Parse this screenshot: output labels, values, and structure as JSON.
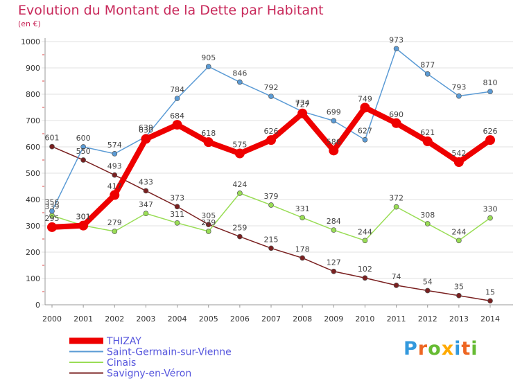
{
  "title": "Evolution du Montant de la Dette par Habitant",
  "subtitle": "(en €)",
  "logo_text": "Proxiti",
  "chart_data": {
    "type": "line",
    "x": [
      "2000",
      "2001",
      "2002",
      "2003",
      "2004",
      "2005",
      "2006",
      "2007",
      "2008",
      "2009",
      "2010",
      "2011",
      "2012",
      "2013",
      "2014"
    ],
    "ylim": [
      0,
      1000
    ],
    "yticks": [
      0,
      100,
      200,
      300,
      400,
      500,
      600,
      700,
      800,
      900,
      1000
    ],
    "grid": true,
    "legend_position": "bottom-left",
    "series": [
      {
        "name": "Savigny-en-Véron",
        "color": "#7a2020",
        "values": [
          601,
          550,
          493,
          433,
          373,
          305,
          259,
          215,
          178,
          127,
          102,
          74,
          54,
          35,
          15
        ]
      },
      {
        "name": "Cinais",
        "color": "#99dd55",
        "values": [
          339,
          301,
          279,
          347,
          311,
          279,
          424,
          379,
          331,
          284,
          244,
          372,
          308,
          244,
          330
        ]
      },
      {
        "name": "Saint-Germain-sur-Vienne",
        "color": "#5b9bd5",
        "values": [
          356,
          600,
          574,
          639,
          784,
          905,
          846,
          792,
          734,
          699,
          627,
          973,
          877,
          793,
          810
        ]
      },
      {
        "name": "THIZAY",
        "color": "#ee0000",
        "values": [
          295,
          301,
          417,
          630,
          684,
          618,
          575,
          626,
          727,
          586,
          749,
          690,
          621,
          542,
          626
        ]
      }
    ]
  }
}
